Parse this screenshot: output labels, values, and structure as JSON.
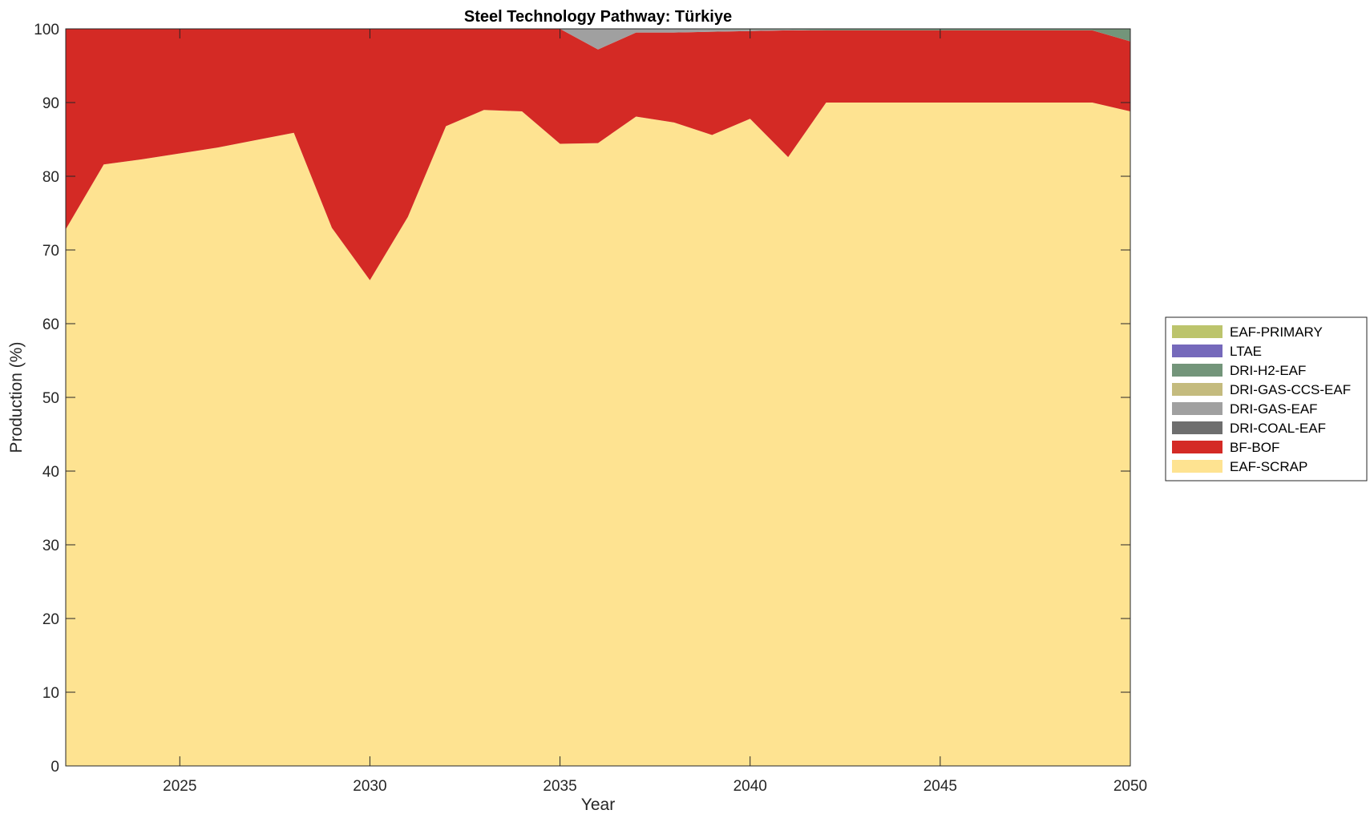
{
  "chart_data": {
    "type": "area",
    "stacked": true,
    "title": "Steel Technology Pathway: Türkiye",
    "xlabel": "Year",
    "ylabel": "Production (%)",
    "xlim": [
      2022,
      2050
    ],
    "ylim": [
      0,
      100
    ],
    "xticks": [
      2025,
      2030,
      2035,
      2040,
      2045,
      2050
    ],
    "yticks": [
      0,
      10,
      20,
      30,
      40,
      50,
      60,
      70,
      80,
      90,
      100
    ],
    "grid": false,
    "legend_position": "right",
    "x": [
      2022,
      2023,
      2024,
      2025,
      2026,
      2027,
      2028,
      2029,
      2030,
      2031,
      2032,
      2033,
      2034,
      2035,
      2036,
      2037,
      2038,
      2039,
      2040,
      2041,
      2042,
      2043,
      2044,
      2045,
      2046,
      2047,
      2048,
      2049,
      2050
    ],
    "series": [
      {
        "name": "EAF-SCRAP",
        "color": "#FEE391",
        "values": [
          72.8,
          81.6,
          82.3,
          83.1,
          83.9,
          84.9,
          85.9,
          73.0,
          65.9,
          74.5,
          86.8,
          89.0,
          88.8,
          84.4,
          84.5,
          88.1,
          87.3,
          85.6,
          87.8,
          82.6,
          90.0,
          90.0,
          90.0,
          90.0,
          90.0,
          90.0,
          90.0,
          90.0,
          88.8
        ]
      },
      {
        "name": "BF-BOF",
        "color": "#D42A25",
        "values": [
          27.2,
          18.4,
          17.7,
          16.9,
          16.1,
          15.1,
          14.1,
          27.0,
          34.1,
          25.5,
          13.2,
          11.0,
          11.2,
          15.6,
          12.7,
          11.4,
          12.2,
          14.0,
          11.9,
          17.2,
          9.8,
          9.8,
          9.8,
          9.8,
          9.8,
          9.8,
          9.8,
          9.8,
          9.5
        ]
      },
      {
        "name": "DRI-COAL-EAF",
        "color": "#6E6E6E",
        "values": [
          0,
          0,
          0,
          0,
          0,
          0,
          0,
          0,
          0,
          0,
          0,
          0,
          0,
          0,
          0,
          0,
          0,
          0,
          0,
          0,
          0,
          0,
          0,
          0,
          0,
          0,
          0,
          0,
          0
        ]
      },
      {
        "name": "DRI-GAS-EAF",
        "color": "#A0A0A0",
        "values": [
          0,
          0,
          0,
          0,
          0,
          0,
          0,
          0,
          0,
          0,
          0,
          0,
          0,
          0,
          2.8,
          0.5,
          0.5,
          0.3,
          0.2,
          0.1,
          0,
          0,
          0,
          0,
          0,
          0,
          0,
          0,
          0
        ]
      },
      {
        "name": "DRI-GAS-CCS-EAF",
        "color": "#C4BB7E",
        "values": [
          0,
          0,
          0,
          0,
          0,
          0,
          0,
          0,
          0,
          0,
          0,
          0,
          0,
          0,
          0,
          0,
          0,
          0,
          0,
          0,
          0,
          0,
          0,
          0,
          0,
          0,
          0,
          0,
          0
        ]
      },
      {
        "name": "DRI-H2-EAF",
        "color": "#73957A",
        "values": [
          0,
          0,
          0,
          0,
          0,
          0,
          0,
          0,
          0,
          0,
          0,
          0,
          0,
          0,
          0,
          0,
          0,
          0.1,
          0.1,
          0.1,
          0.2,
          0.2,
          0.2,
          0.2,
          0.2,
          0.2,
          0.2,
          0.2,
          1.7
        ]
      },
      {
        "name": "LTAE",
        "color": "#7569BB",
        "values": [
          0,
          0,
          0,
          0,
          0,
          0,
          0,
          0,
          0,
          0,
          0,
          0,
          0,
          0,
          0,
          0,
          0,
          0,
          0,
          0,
          0,
          0,
          0,
          0,
          0,
          0,
          0,
          0,
          0
        ]
      },
      {
        "name": "EAF-PRIMARY",
        "color": "#BCC46C",
        "values": [
          0,
          0,
          0,
          0,
          0,
          0,
          0,
          0,
          0,
          0,
          0,
          0,
          0,
          0,
          0,
          0,
          0,
          0,
          0,
          0,
          0,
          0,
          0,
          0,
          0,
          0,
          0,
          0,
          0
        ]
      }
    ],
    "legend_order": [
      "EAF-PRIMARY",
      "LTAE",
      "DRI-H2-EAF",
      "DRI-GAS-CCS-EAF",
      "DRI-GAS-EAF",
      "DRI-COAL-EAF",
      "BF-BOF",
      "EAF-SCRAP"
    ]
  }
}
